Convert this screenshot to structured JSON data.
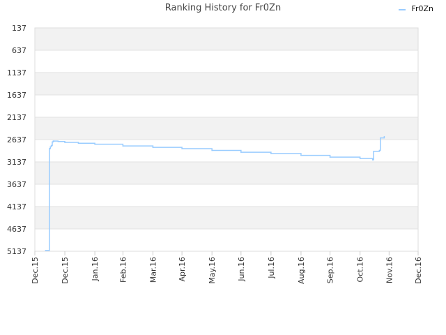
{
  "chart_data": {
    "type": "line",
    "title": "Ranking History for Fr0Zn",
    "xlabel": "",
    "ylabel": "",
    "y_inverted": true,
    "ylim": [
      137,
      5137
    ],
    "yticks": [
      137,
      637,
      1137,
      1637,
      2137,
      2637,
      3137,
      3637,
      4137,
      4637,
      5137
    ],
    "xlim": [
      "2015-12-01",
      "2016-12-31"
    ],
    "xticks": [
      "2015-12-01",
      "2016-01-01",
      "2016-02-01",
      "2016-03-01",
      "2016-04-01",
      "2016-05-01",
      "2016-06-01",
      "2016-07-01",
      "2016-08-01",
      "2016-09-01",
      "2016-10-01",
      "2016-11-01",
      "2016-12-01",
      "2016-12-31"
    ],
    "xtick_labels": [
      "Dec.15",
      "Dec.15",
      "Jan.16",
      "Feb.16",
      "Mar.16",
      "Apr.16",
      "May.16",
      "Jun.16",
      "Jul.16",
      "Aug.16",
      "Sep.16",
      "Oct.16",
      "Nov.16",
      "Dec.16"
    ],
    "grid": true,
    "banded_background": true,
    "legend_position": "top-right",
    "series": [
      {
        "name": "Fr0Zn",
        "color": "#99ccff",
        "x": [
          "2015-12-12",
          "2015-12-16",
          "2015-12-16",
          "2015-12-17",
          "2015-12-18",
          "2015-12-19",
          "2015-12-20",
          "2015-12-21",
          "2015-12-25",
          "2016-01-01",
          "2016-01-15",
          "2016-02-01",
          "2016-03-01",
          "2016-04-01",
          "2016-05-01",
          "2016-06-01",
          "2016-07-01",
          "2016-08-01",
          "2016-09-01",
          "2016-10-01",
          "2016-11-01",
          "2016-11-14",
          "2016-11-15",
          "2016-11-21",
          "2016-11-22",
          "2016-11-26"
        ],
        "y": [
          5120,
          5120,
          2840,
          2800,
          2770,
          2690,
          2670,
          2670,
          2680,
          2700,
          2720,
          2740,
          2780,
          2810,
          2840,
          2880,
          2920,
          2950,
          2990,
          3030,
          3060,
          3090,
          2900,
          2880,
          2600,
          2570
        ]
      }
    ]
  }
}
